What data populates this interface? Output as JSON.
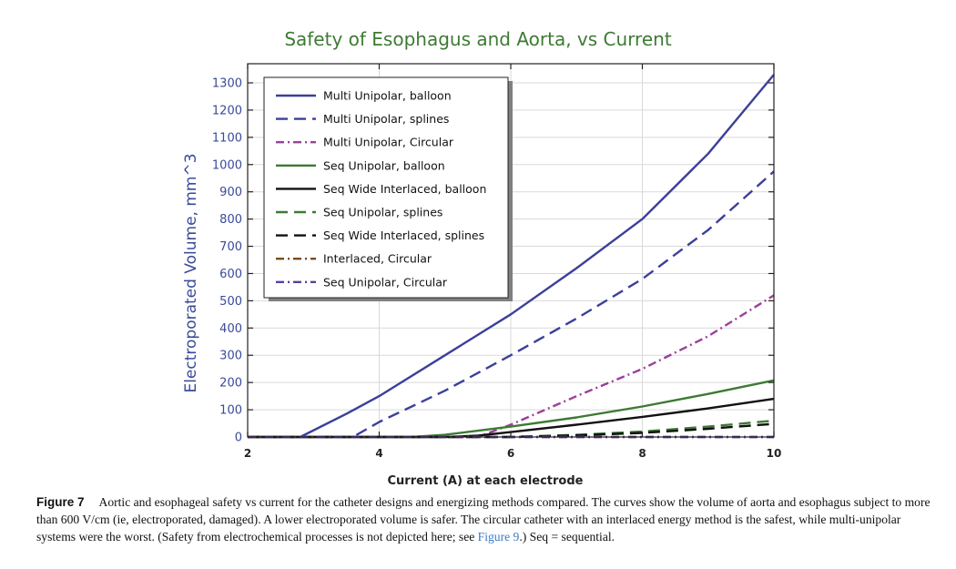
{
  "chart_data": {
    "type": "line",
    "title": "Safety of Esophagus and Aorta, vs Current",
    "xlabel": "Current (A) at each electrode",
    "ylabel": "Electroporated Volume, mm^3",
    "xlim": [
      2,
      10
    ],
    "ylim": [
      0,
      1300
    ],
    "xticks": [
      2,
      4,
      6,
      8,
      10
    ],
    "yticks": [
      0,
      100,
      200,
      300,
      400,
      500,
      600,
      700,
      800,
      900,
      1000,
      1100,
      1200,
      1300
    ],
    "grid": true,
    "legend_position": "top-left",
    "colors": {
      "title": "#3d7a33",
      "ylabel": "#3a4a9a",
      "ytick": "#3a4a9a",
      "axis": "#222222",
      "grid": "#d9d9d9"
    },
    "series": [
      {
        "name": "Multi Unipolar, balloon",
        "color": "#3c3f9a",
        "dash": "solid",
        "x": [
          2,
          2.8,
          3.5,
          4,
          5,
          6,
          7,
          8,
          9,
          10
        ],
        "y": [
          0,
          0,
          85,
          150,
          300,
          450,
          620,
          800,
          1040,
          1330
        ]
      },
      {
        "name": "Multi Unipolar, splines",
        "color": "#3c3f9a",
        "dash": "dash",
        "x": [
          2,
          3.6,
          4,
          5,
          6,
          7,
          8,
          9,
          10
        ],
        "y": [
          0,
          0,
          55,
          170,
          300,
          435,
          580,
          760,
          975
        ]
      },
      {
        "name": "Multi Unipolar, Circular",
        "color": "#9b3f9a",
        "dash": "dashdot",
        "x": [
          2,
          5.5,
          6,
          7,
          8,
          9,
          10
        ],
        "y": [
          0,
          0,
          45,
          150,
          250,
          370,
          520
        ]
      },
      {
        "name": "Seq Unipolar, balloon",
        "color": "#3d7a33",
        "dash": "solid",
        "x": [
          2,
          4.5,
          5,
          6,
          7,
          8,
          9,
          10
        ],
        "y": [
          0,
          0,
          8,
          38,
          72,
          112,
          158,
          208
        ]
      },
      {
        "name": "Seq Wide Interlaced, balloon",
        "color": "#111111",
        "dash": "solid",
        "x": [
          2,
          5,
          5.5,
          6,
          7,
          8,
          9,
          10
        ],
        "y": [
          0,
          0,
          5,
          18,
          45,
          74,
          105,
          140
        ]
      },
      {
        "name": "Seq Unipolar, splines",
        "color": "#3d7a33",
        "dash": "dash",
        "x": [
          2,
          6,
          7,
          8,
          9,
          10
        ],
        "y": [
          0,
          0,
          8,
          20,
          38,
          60
        ]
      },
      {
        "name": "Seq Wide Interlaced, splines",
        "color": "#111111",
        "dash": "dash",
        "x": [
          2,
          6,
          7,
          8,
          9,
          10
        ],
        "y": [
          0,
          0,
          6,
          15,
          30,
          48
        ]
      },
      {
        "name": "Interlaced, Circular",
        "color": "#7a4a1e",
        "dash": "dashdot",
        "x": [
          2,
          10
        ],
        "y": [
          0,
          0
        ]
      },
      {
        "name": "Seq Unipolar, Circular",
        "color": "#5b3f9a",
        "dash": "dashdot",
        "x": [
          2,
          10
        ],
        "y": [
          0,
          0
        ]
      }
    ]
  },
  "caption": {
    "label": "Figure 7",
    "text_before_link": "Aortic and esophageal safety vs current for the catheter designs and energizing methods compared. The curves show the volume of aorta and esophagus subject to more than 600 V/cm (ie, electroporated, damaged). A lower electroporated volume is safer. The circular catheter with an interlaced energy method is the safest, while multi-unipolar systems were the worst. (Safety from electrochemical processes is not depicted here; see ",
    "link_text": "Figure 9",
    "text_after_link": ".) Seq = sequential."
  }
}
